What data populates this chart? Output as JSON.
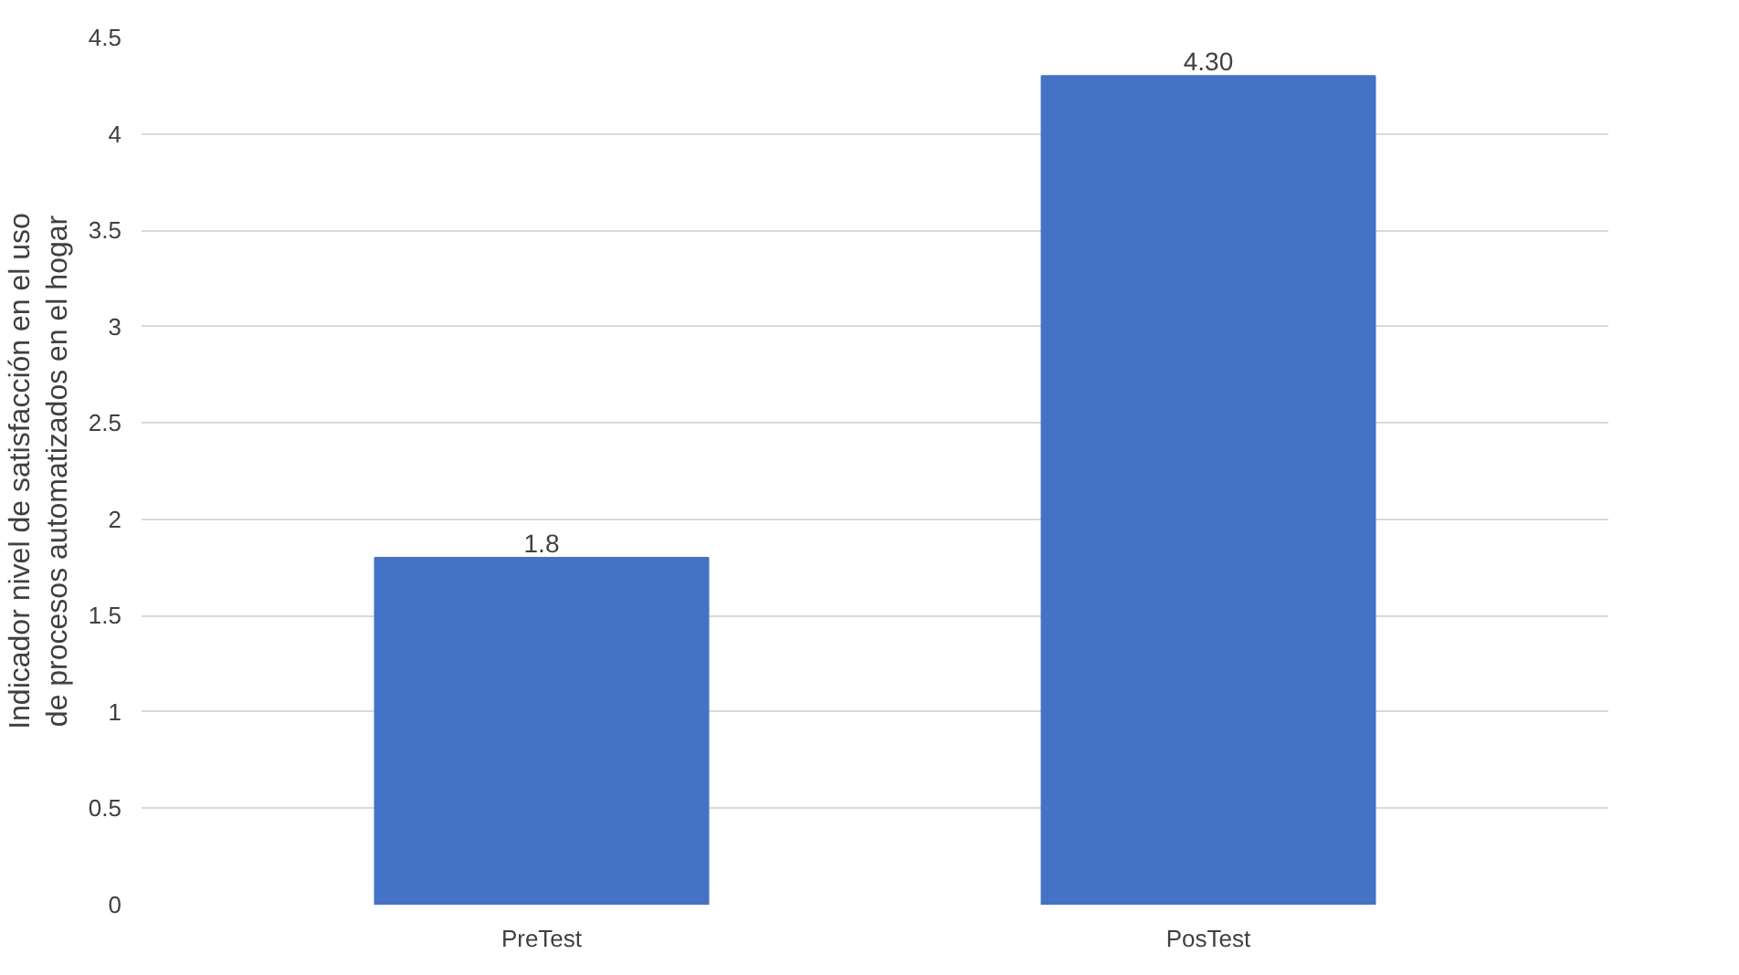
{
  "chart_data": {
    "type": "bar",
    "ylabel": "Indicador nivel de satisfacción en el uso de procesos automatizados en el hogar",
    "categories": [
      "PreTest",
      "PosTest"
    ],
    "values": [
      1.8,
      4.3
    ],
    "value_labels": [
      "1.8",
      "4.30"
    ],
    "color": "#4472c4",
    "ylim": [
      0,
      4.5
    ],
    "yticks": [
      0,
      0.5,
      1,
      1.5,
      2,
      2.5,
      3,
      3.5,
      4,
      4.5
    ],
    "grid": "y"
  }
}
